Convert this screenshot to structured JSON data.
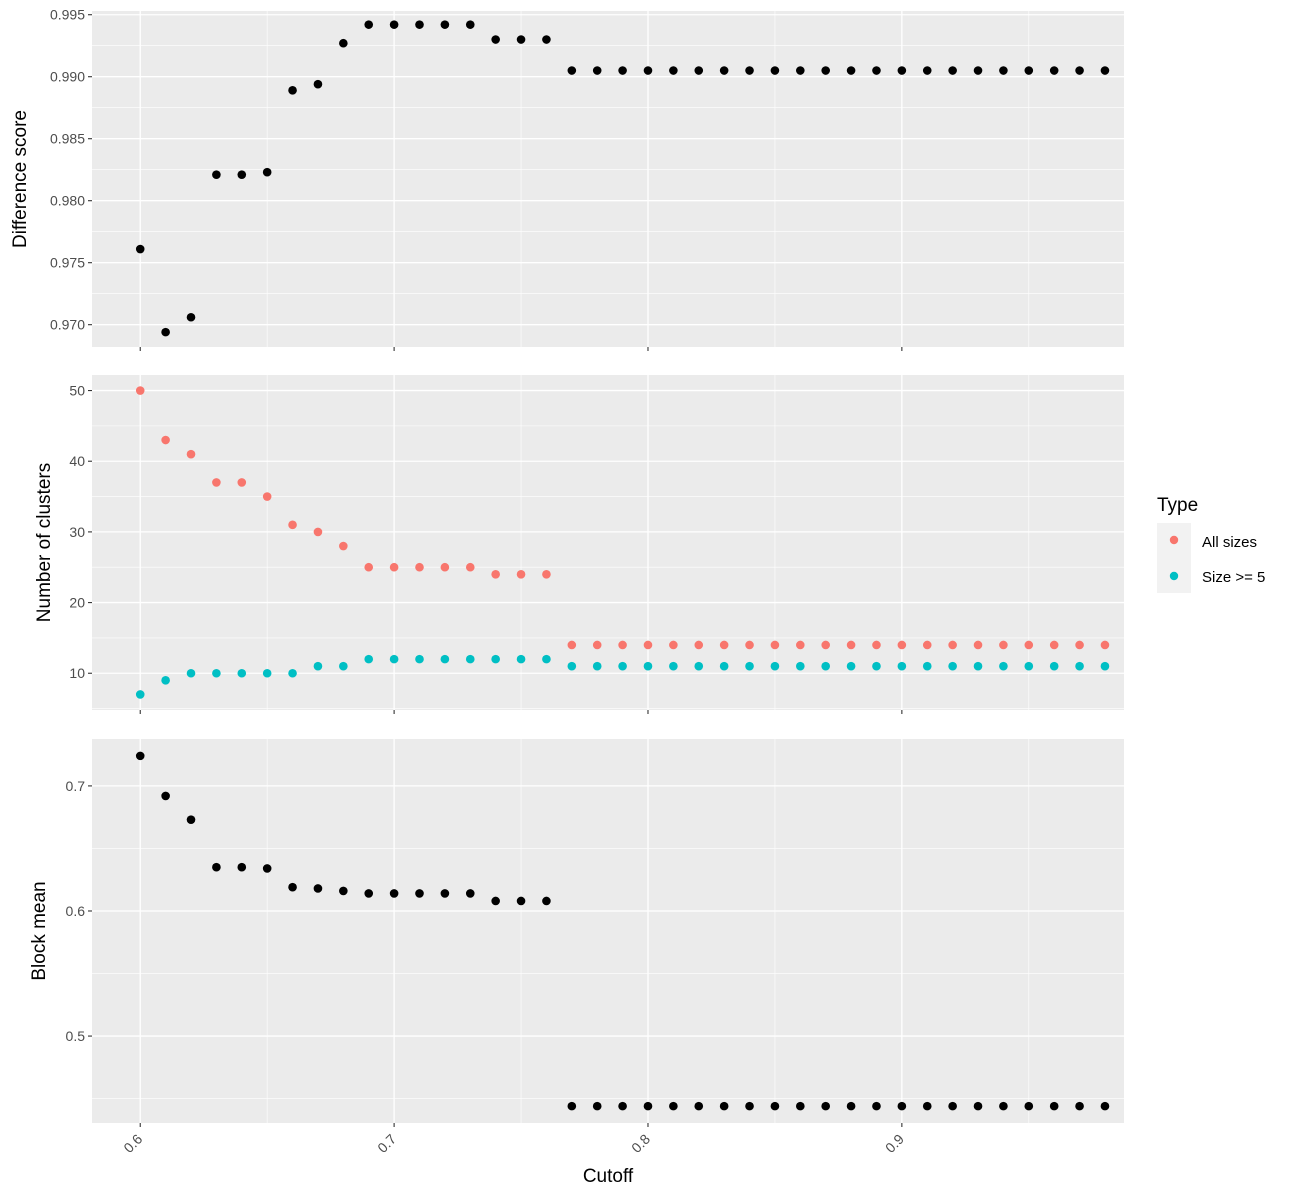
{
  "chart_data": {
    "type": "scatter",
    "xlabel": "Cutoff",
    "x_ticks": [
      0.6,
      0.7,
      0.8,
      0.9
    ],
    "x_tick_labels": [
      "0.6",
      "0.7",
      "0.8",
      "0.9"
    ],
    "xlim": [
      0.581,
      0.9875
    ],
    "x": [
      0.6,
      0.61,
      0.62,
      0.63,
      0.64,
      0.65,
      0.66,
      0.67,
      0.68,
      0.69,
      0.7,
      0.71,
      0.72,
      0.73,
      0.74,
      0.75,
      0.76,
      0.77,
      0.78,
      0.79,
      0.8,
      0.81,
      0.82,
      0.83,
      0.84,
      0.85,
      0.86,
      0.87,
      0.88,
      0.89,
      0.9,
      0.91,
      0.92,
      0.93,
      0.94,
      0.95,
      0.96,
      0.97,
      0.98
    ],
    "panels": [
      {
        "ylabel": "Difference score",
        "ylim": [
          0.9682,
          0.9953
        ],
        "y_ticks": [
          0.97,
          0.975,
          0.98,
          0.985,
          0.99,
          0.995
        ],
        "y_tick_labels": [
          "0.970",
          "0.975",
          "0.980",
          "0.985",
          "0.990",
          "0.995"
        ],
        "series": [
          {
            "color": "#000000",
            "values": [
              0.9761,
              0.9694,
              0.9706,
              0.9821,
              0.9821,
              0.9823,
              0.9889,
              0.9894,
              0.9927,
              0.9942,
              0.9942,
              0.9942,
              0.9942,
              0.9942,
              0.993,
              0.993,
              0.993,
              0.9905,
              0.9905,
              0.9905,
              0.9905,
              0.9905,
              0.9905,
              0.9905,
              0.9905,
              0.9905,
              0.9905,
              0.9905,
              0.9905,
              0.9905,
              0.9905,
              0.9905,
              0.9905,
              0.9905,
              0.9905,
              0.9905,
              0.9905,
              0.9905,
              0.9905
            ]
          }
        ]
      },
      {
        "ylabel": "Number of clusters",
        "ylim": [
          4.8,
          52.2
        ],
        "y_ticks": [
          10,
          20,
          30,
          40,
          50
        ],
        "y_tick_labels": [
          "10",
          "20",
          "30",
          "40",
          "50"
        ],
        "series": [
          {
            "name": "All sizes",
            "color": "#F8766D",
            "values": [
              50,
              43,
              41,
              37,
              37,
              35,
              31,
              30,
              28,
              25,
              25,
              25,
              25,
              25,
              24,
              24,
              24,
              14,
              14,
              14,
              14,
              14,
              14,
              14,
              14,
              14,
              14,
              14,
              14,
              14,
              14,
              14,
              14,
              14,
              14,
              14,
              14,
              14,
              14
            ]
          },
          {
            "name": "Size >= 5",
            "color": "#00BFC4",
            "values": [
              7,
              9,
              10,
              10,
              10,
              10,
              10,
              11,
              11,
              12,
              12,
              12,
              12,
              12,
              12,
              12,
              12,
              11,
              11,
              11,
              11,
              11,
              11,
              11,
              11,
              11,
              11,
              11,
              11,
              11,
              11,
              11,
              11,
              11,
              11,
              11,
              11,
              11,
              11
            ]
          }
        ]
      },
      {
        "ylabel": "Block mean",
        "ylim": [
          0.4305,
          0.7375
        ],
        "y_ticks": [
          0.5,
          0.6,
          0.7
        ],
        "y_tick_labels": [
          "0.5",
          "0.6",
          "0.7"
        ],
        "series": [
          {
            "color": "#000000",
            "values": [
              0.724,
              0.692,
              0.673,
              0.635,
              0.635,
              0.634,
              0.619,
              0.618,
              0.616,
              0.614,
              0.614,
              0.614,
              0.614,
              0.614,
              0.608,
              0.608,
              0.608,
              0.444,
              0.444,
              0.444,
              0.444,
              0.444,
              0.444,
              0.444,
              0.444,
              0.444,
              0.444,
              0.444,
              0.444,
              0.444,
              0.444,
              0.444,
              0.444,
              0.444,
              0.444,
              0.444,
              0.444,
              0.444,
              0.444
            ]
          }
        ]
      }
    ],
    "legend": {
      "title": "Type",
      "placement": "right",
      "entries": [
        {
          "label": "All sizes",
          "color": "#F8766D"
        },
        {
          "label": "Size >= 5",
          "color": "#00BFC4"
        }
      ]
    },
    "grid": true,
    "panel_background": "#EBEBEB",
    "gridline_color": "#FFFFFF"
  }
}
